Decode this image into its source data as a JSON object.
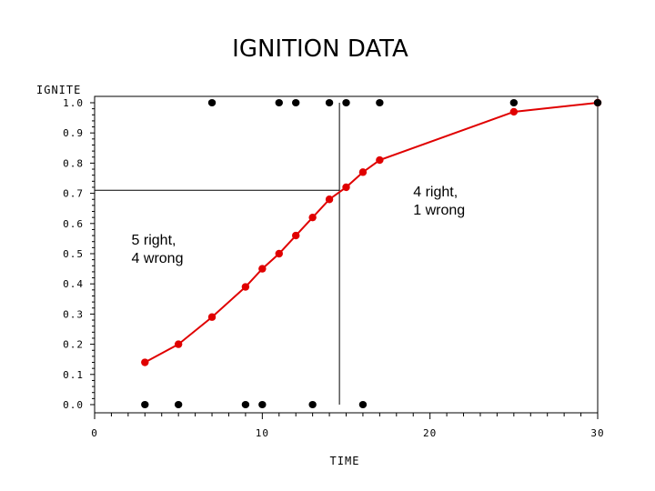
{
  "colors": {
    "fitted": "#e00000",
    "observed": "#000000",
    "frame": "#000000",
    "background": "#ffffff"
  },
  "chart_data": {
    "type": "scatter",
    "title": "IGNITION DATA",
    "xlabel": "TIME",
    "ylabel": "IGNITE",
    "xlim": [
      0,
      30
    ],
    "ylim": [
      0.0,
      1.0
    ],
    "x_ticks": [
      0,
      10,
      20,
      30
    ],
    "x_tick_labels": [
      "0",
      "10",
      "20",
      "30"
    ],
    "y_ticks": [
      0.0,
      0.1,
      0.2,
      0.3,
      0.4,
      0.5,
      0.6,
      0.7,
      0.8,
      0.9,
      1.0
    ],
    "y_tick_labels": [
      "0.0",
      "0.1",
      "0.2",
      "0.3",
      "0.4",
      "0.5",
      "0.6",
      "0.7",
      "0.8",
      "0.9",
      "1.0"
    ],
    "grid": false,
    "series": [
      {
        "kind": "points",
        "color": "#000000",
        "points": [
          [
            3,
            0
          ],
          [
            5,
            0
          ],
          [
            9,
            0
          ],
          [
            10,
            0
          ],
          [
            13,
            0
          ],
          [
            16,
            0
          ],
          [
            7,
            1
          ],
          [
            11,
            1
          ],
          [
            12,
            1
          ],
          [
            14,
            1
          ],
          [
            15,
            1
          ],
          [
            17,
            1
          ],
          [
            25,
            1
          ],
          [
            30,
            1
          ]
        ]
      },
      {
        "kind": "line",
        "color": "#e00000",
        "x": [
          3,
          5,
          7,
          9,
          10,
          11,
          12,
          13,
          14,
          15,
          16,
          17,
          25,
          30
        ],
        "y": [
          0.14,
          0.2,
          0.29,
          0.39,
          0.45,
          0.5,
          0.56,
          0.62,
          0.68,
          0.72,
          0.77,
          0.81,
          0.97,
          1.0
        ]
      }
    ],
    "reference_lines": [
      {
        "orientation": "vertical",
        "x": 14.6,
        "y_from": 0.0,
        "y_to": 1.0
      },
      {
        "orientation": "horizontal",
        "y": 0.71,
        "x_from": 0,
        "x_to": 14.6
      }
    ],
    "annotations": [
      {
        "lines": [
          "5 right,",
          "4 wrong"
        ],
        "x": 2.2,
        "y": 0.53
      },
      {
        "lines": [
          "4 right,",
          "1 wrong"
        ],
        "x": 19.0,
        "y": 0.69
      }
    ]
  }
}
